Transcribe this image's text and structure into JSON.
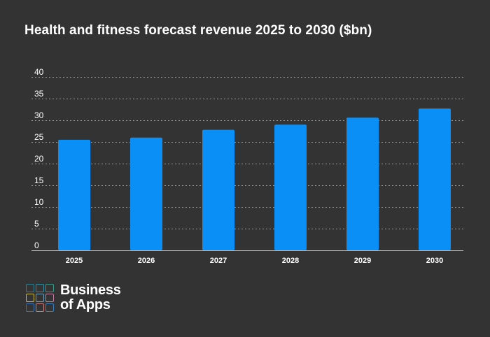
{
  "chart_data": {
    "type": "bar",
    "title": "Health and fitness forecast revenue 2025 to 2030 ($bn)",
    "categories": [
      "2025",
      "2026",
      "2027",
      "2028",
      "2029",
      "2030"
    ],
    "values": [
      25.5,
      26,
      27.8,
      29,
      30.6,
      32.7
    ],
    "xlabel": "",
    "ylabel": "",
    "ylim": [
      0,
      40
    ],
    "yticks": [
      "0",
      "5",
      "10",
      "15",
      "20",
      "25",
      "30",
      "35",
      "40"
    ],
    "grid": true,
    "grid_style": "dotted",
    "legend": "none",
    "bar_color": "#0a8ff7",
    "background_color": "#333333",
    "text_color": "#ffffff"
  },
  "logo": {
    "line1": "Business",
    "line2": "of Apps",
    "cell_colors": [
      "#2d7f93",
      "#2f8fa3",
      "#3a9a8a",
      "#c9b84a",
      "#6f9fbf",
      "#c07fa0",
      "#3a6fb0",
      "#c97f7f",
      "#3a7fc0"
    ]
  }
}
